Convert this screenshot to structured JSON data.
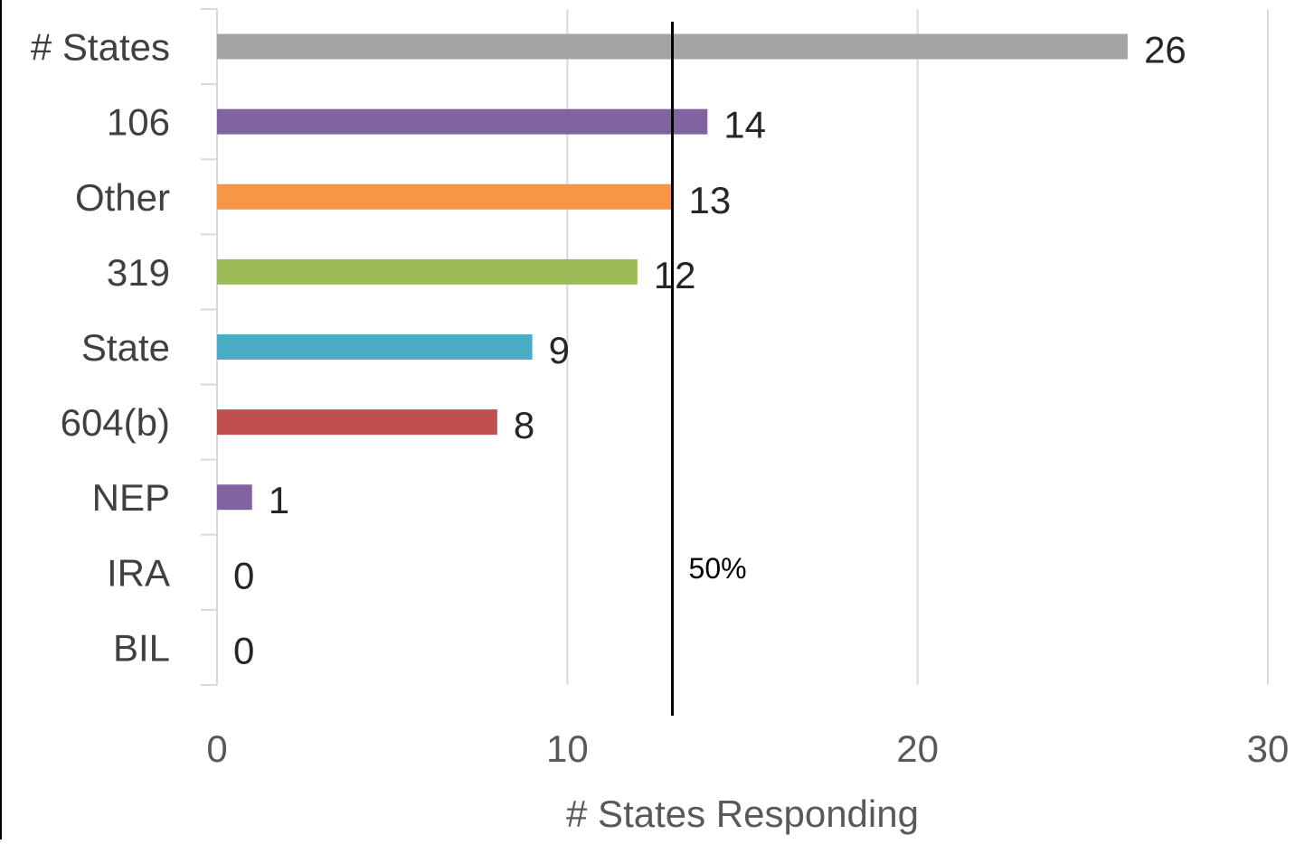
{
  "chart_data": {
    "type": "bar",
    "orientation": "horizontal",
    "categories": [
      "# States",
      "106",
      "Other",
      "319",
      "State",
      "604(b)",
      "NEP",
      "IRA",
      "BIL"
    ],
    "values": [
      26,
      14,
      13,
      12,
      9,
      8,
      1,
      0,
      0
    ],
    "colors": [
      "#A5A5A5",
      "#8064A2",
      "#F79646",
      "#9BBB59",
      "#4BACC6",
      "#C0504D",
      "#8064A2",
      "#8064A2",
      "#8064A2"
    ],
    "data_labels": [
      "26",
      "14",
      "13",
      "12",
      "9",
      "8",
      "1",
      "0",
      "0"
    ],
    "xlabel": "# States Responding",
    "ylabel": "",
    "xlim": [
      0,
      30
    ],
    "xticks": [
      "0",
      "10",
      "20",
      "30"
    ],
    "xtick_values": [
      0,
      10,
      20,
      30
    ],
    "grid": true,
    "legend": "none",
    "reference_line": {
      "value": 13,
      "label": "50%",
      "color": "#000000"
    }
  }
}
